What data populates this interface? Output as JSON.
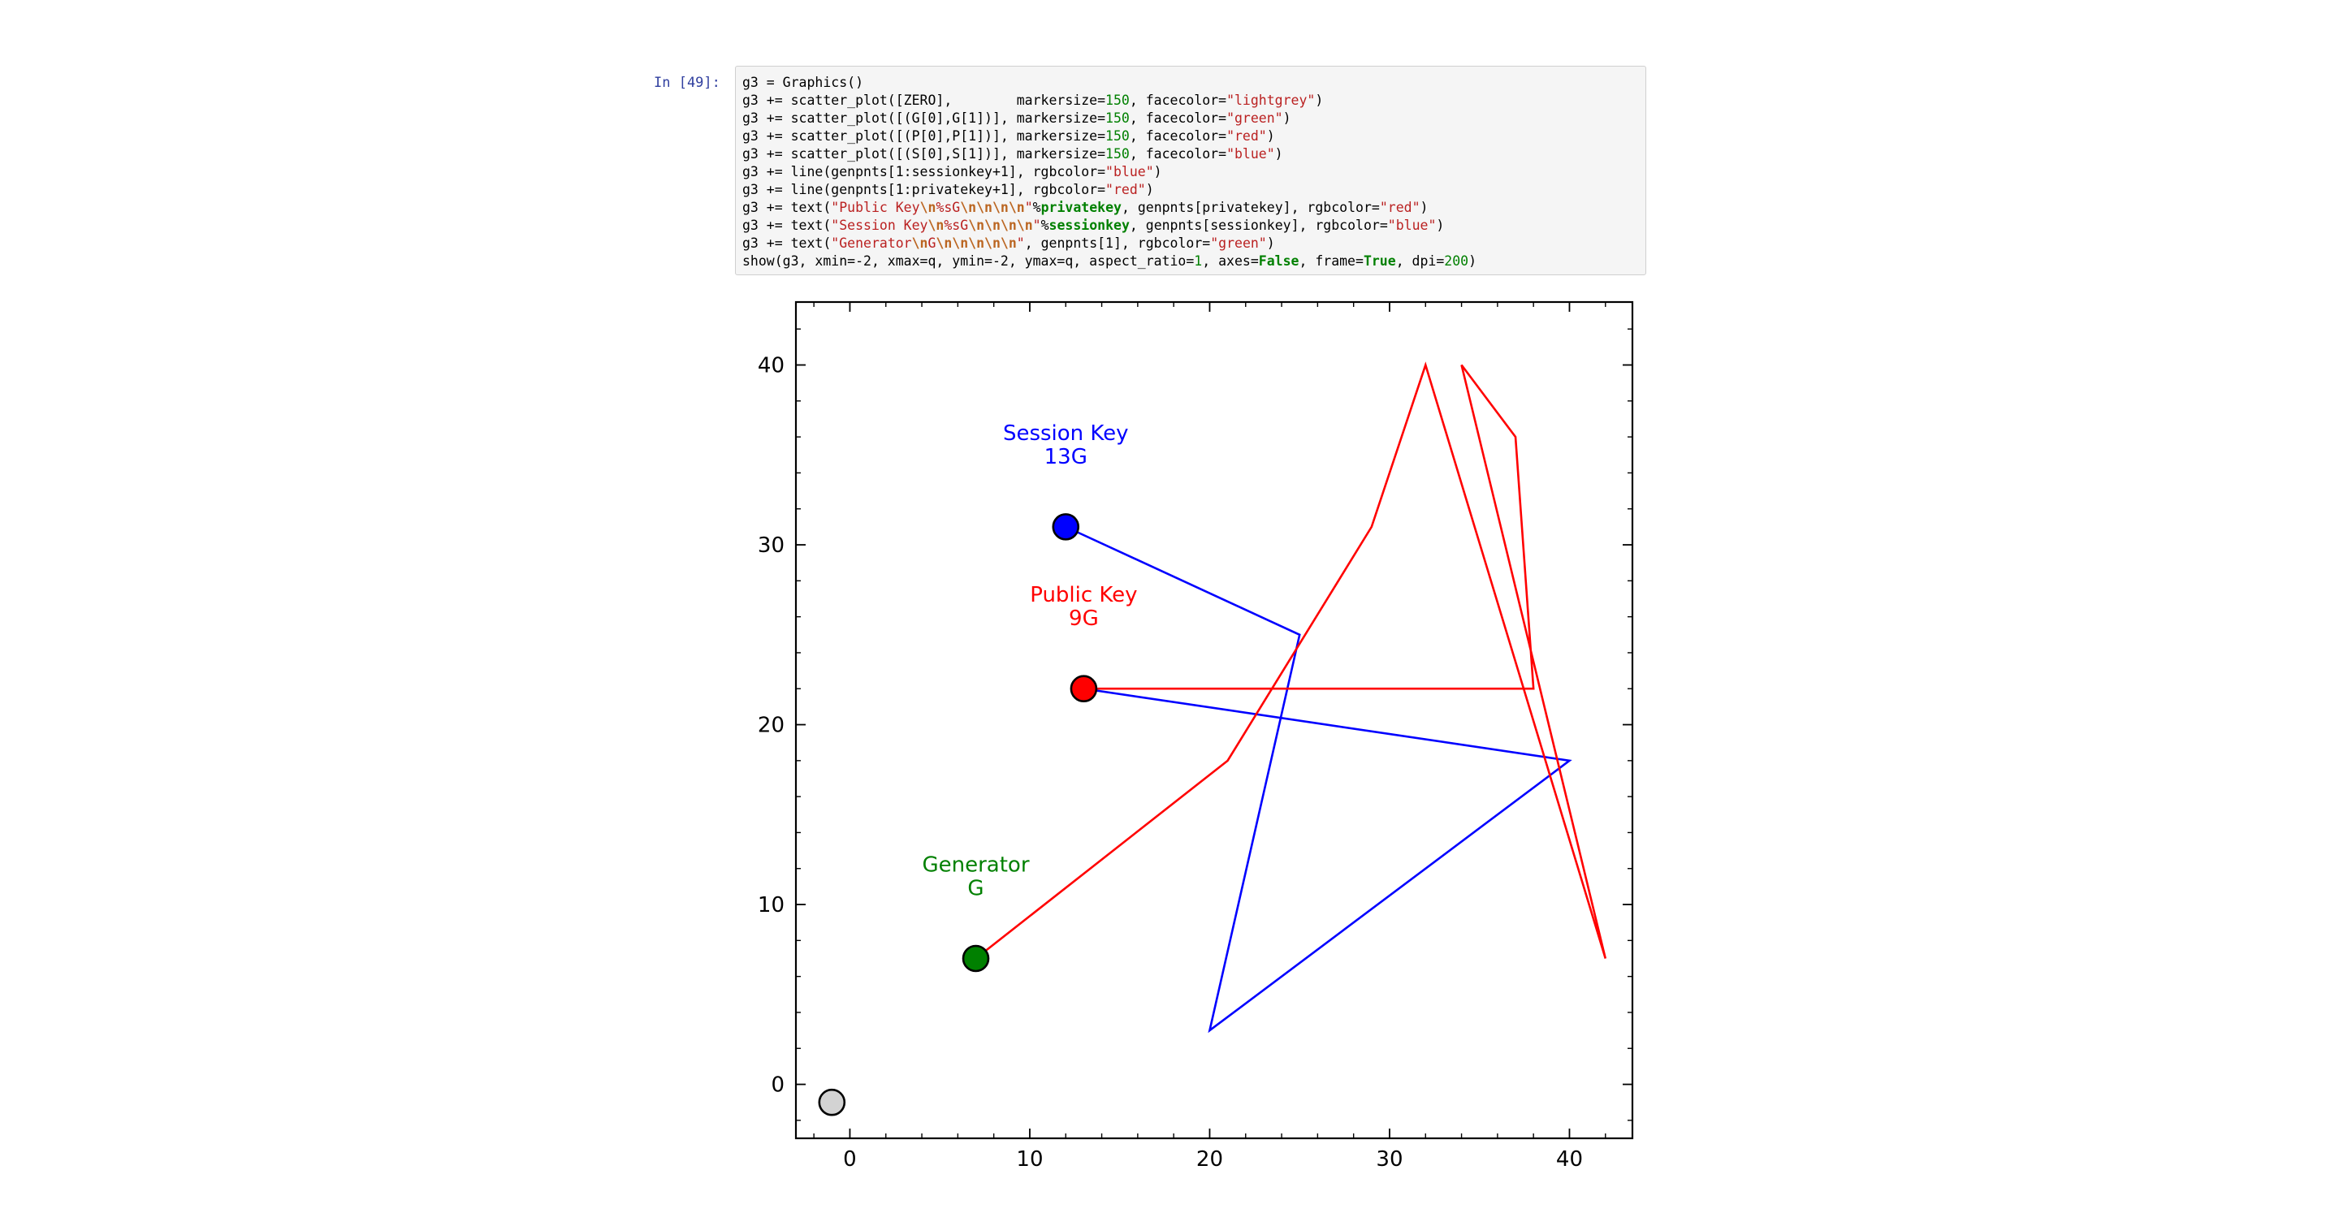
{
  "cell": {
    "prompt": "In [49]:",
    "lines": [
      [
        {
          "t": "g3 = Graphics()"
        }
      ],
      [
        {
          "t": "g3 += scatter_plot([ZERO],        markersize="
        },
        {
          "t": "150",
          "c": "num"
        },
        {
          "t": ", facecolor="
        },
        {
          "t": "\"lightgrey\"",
          "c": "str"
        },
        {
          "t": ")"
        }
      ],
      [
        {
          "t": "g3 += scatter_plot([(G[0],G[1])], markersize="
        },
        {
          "t": "150",
          "c": "num"
        },
        {
          "t": ", facecolor="
        },
        {
          "t": "\"green\"",
          "c": "str"
        },
        {
          "t": ")"
        }
      ],
      [
        {
          "t": "g3 += scatter_plot([(P[0],P[1])], markersize="
        },
        {
          "t": "150",
          "c": "num"
        },
        {
          "t": ", facecolor="
        },
        {
          "t": "\"red\"",
          "c": "str"
        },
        {
          "t": ")"
        }
      ],
      [
        {
          "t": "g3 += scatter_plot([(S[0],S[1])], markersize="
        },
        {
          "t": "150",
          "c": "num"
        },
        {
          "t": ", facecolor="
        },
        {
          "t": "\"blue\"",
          "c": "str"
        },
        {
          "t": ")"
        }
      ],
      [
        {
          "t": "g3 += line(genpnts[1:sessionkey+1], rgbcolor="
        },
        {
          "t": "\"blue\"",
          "c": "str"
        },
        {
          "t": ")"
        }
      ],
      [
        {
          "t": "g3 += line(genpnts[1:privatekey+1], rgbcolor="
        },
        {
          "t": "\"red\"",
          "c": "str"
        },
        {
          "t": ")"
        }
      ],
      [
        {
          "t": "g3 += text("
        },
        {
          "t": "\"Public Key",
          "c": "str"
        },
        {
          "t": "\\n",
          "c": "esc"
        },
        {
          "t": "%sG",
          "c": "str"
        },
        {
          "t": "\\n\\n\\n\\n",
          "c": "esc"
        },
        {
          "t": "\"",
          "c": "str"
        },
        {
          "t": "%"
        },
        {
          "t": "privatekey",
          "c": "kw"
        },
        {
          "t": ", genpnts[privatekey], rgbcolor="
        },
        {
          "t": "\"red\"",
          "c": "str"
        },
        {
          "t": ")"
        }
      ],
      [
        {
          "t": "g3 += text("
        },
        {
          "t": "\"Session Key",
          "c": "str"
        },
        {
          "t": "\\n",
          "c": "esc"
        },
        {
          "t": "%sG",
          "c": "str"
        },
        {
          "t": "\\n\\n\\n\\n",
          "c": "esc"
        },
        {
          "t": "\"",
          "c": "str"
        },
        {
          "t": "%"
        },
        {
          "t": "sessionkey",
          "c": "kw"
        },
        {
          "t": ", genpnts[sessionkey], rgbcolor="
        },
        {
          "t": "\"blue\"",
          "c": "str"
        },
        {
          "t": ")"
        }
      ],
      [
        {
          "t": "g3 += text("
        },
        {
          "t": "\"Generator",
          "c": "str"
        },
        {
          "t": "\\n",
          "c": "esc"
        },
        {
          "t": "G",
          "c": "str"
        },
        {
          "t": "\\n\\n\\n\\n\\n",
          "c": "esc"
        },
        {
          "t": "\"",
          "c": "str"
        },
        {
          "t": ", genpnts[1], rgbcolor="
        },
        {
          "t": "\"green\"",
          "c": "str"
        },
        {
          "t": ")"
        }
      ],
      [
        {
          "t": "show(g3, xmin=-2, xmax=q, ymin=-2, ymax=q, aspect_ratio="
        },
        {
          "t": "1",
          "c": "num"
        },
        {
          "t": ", axes="
        },
        {
          "t": "False",
          "c": "kw"
        },
        {
          "t": ", frame="
        },
        {
          "t": "True",
          "c": "kw"
        },
        {
          "t": ", dpi="
        },
        {
          "t": "200",
          "c": "num"
        },
        {
          "t": ")"
        }
      ]
    ]
  },
  "chart_data": {
    "type": "scatter",
    "title": "",
    "xlabel": "",
    "ylabel": "",
    "xlim": [
      -3,
      43.5
    ],
    "ylim": [
      -3,
      43.5
    ],
    "xticks": [
      0,
      10,
      20,
      30,
      40
    ],
    "yticks": [
      0,
      10,
      20,
      30,
      40
    ],
    "grid": false,
    "frame": true,
    "points": [
      {
        "name": "zero",
        "x": -1,
        "y": -1,
        "color": "#d3d3d3"
      },
      {
        "name": "generator",
        "x": 7,
        "y": 7,
        "color": "#008000"
      },
      {
        "name": "public-key",
        "x": 13,
        "y": 22,
        "color": "#ff0000"
      },
      {
        "name": "session-key",
        "x": 12,
        "y": 31,
        "color": "#0000ff"
      }
    ],
    "lines": [
      {
        "color": "#0000ff",
        "x": [
          12,
          25,
          20,
          40,
          13
        ],
        "y": [
          31,
          25,
          3,
          18,
          22
        ]
      },
      {
        "color": "#ff0000",
        "x": [
          7,
          21,
          29,
          32,
          42,
          34,
          37,
          38,
          13
        ],
        "y": [
          7,
          18,
          31,
          40,
          7,
          40,
          36,
          22,
          22
        ]
      }
    ],
    "annotations": [
      {
        "name": "session-key-label",
        "lines": [
          "Session Key",
          "13G"
        ],
        "x": 12,
        "y": 31,
        "color": "#0000ff"
      },
      {
        "name": "public-key-label",
        "lines": [
          "Public Key",
          "9G"
        ],
        "x": 13,
        "y": 22,
        "color": "#ff0000"
      },
      {
        "name": "generator-label",
        "lines": [
          "Generator",
          "G"
        ],
        "x": 7,
        "y": 7,
        "color": "#008000"
      }
    ]
  }
}
